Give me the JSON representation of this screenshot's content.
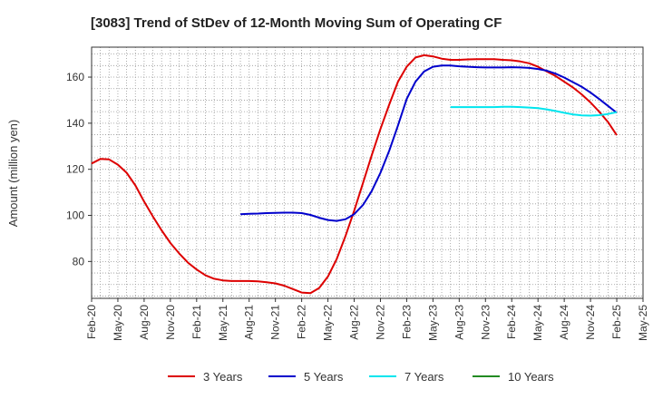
{
  "chart_data": {
    "type": "line",
    "title": "[3083]  Trend of StDev of 12-Month Moving Sum of Operating CF",
    "xlabel": "",
    "ylabel": "Amount (million yen)",
    "ylim": [
      64,
      173
    ],
    "yticks": [
      80,
      100,
      120,
      140,
      160
    ],
    "x_start": "2020-02",
    "x_end": "2025-05",
    "xtick_labels": [
      "Feb-20",
      "May-20",
      "Aug-20",
      "Nov-20",
      "Feb-21",
      "May-21",
      "Aug-21",
      "Nov-21",
      "Feb-22",
      "May-22",
      "Aug-22",
      "Nov-22",
      "Feb-23",
      "May-23",
      "Aug-23",
      "Nov-23",
      "Feb-24",
      "May-24",
      "Aug-24",
      "Nov-24",
      "Feb-25",
      "May-25"
    ],
    "grid": true,
    "legend_position": "bottom",
    "series": [
      {
        "name": "3 Years",
        "color": "#dd0000",
        "points": [
          [
            "2020-02",
            122.5
          ],
          [
            "2020-03",
            124.5
          ],
          [
            "2020-04",
            124.3
          ],
          [
            "2020-05",
            122.0
          ],
          [
            "2020-06",
            118.5
          ],
          [
            "2020-07",
            113.0
          ],
          [
            "2020-08",
            106.0
          ],
          [
            "2020-09",
            99.5
          ],
          [
            "2020-10",
            93.5
          ],
          [
            "2020-11",
            88.0
          ],
          [
            "2020-12",
            83.5
          ],
          [
            "2021-01",
            79.5
          ],
          [
            "2021-02",
            76.5
          ],
          [
            "2021-03",
            74.0
          ],
          [
            "2021-04",
            72.5
          ],
          [
            "2021-05",
            71.8
          ],
          [
            "2021-06",
            71.5
          ],
          [
            "2021-07",
            71.5
          ],
          [
            "2021-08",
            71.5
          ],
          [
            "2021-09",
            71.4
          ],
          [
            "2021-10",
            71.0
          ],
          [
            "2021-11",
            70.5
          ],
          [
            "2021-12",
            69.5
          ],
          [
            "2022-01",
            68.0
          ],
          [
            "2022-02",
            66.5
          ],
          [
            "2022-03",
            66.3
          ],
          [
            "2022-04",
            68.5
          ],
          [
            "2022-05",
            73.5
          ],
          [
            "2022-06",
            81.0
          ],
          [
            "2022-07",
            91.0
          ],
          [
            "2022-08",
            102.0
          ],
          [
            "2022-09",
            114.0
          ],
          [
            "2022-10",
            126.0
          ],
          [
            "2022-11",
            137.5
          ],
          [
            "2022-12",
            148.0
          ],
          [
            "2023-01",
            158.0
          ],
          [
            "2023-02",
            164.5
          ],
          [
            "2023-03",
            168.5
          ],
          [
            "2023-04",
            169.5
          ],
          [
            "2023-05",
            169.0
          ],
          [
            "2023-06",
            168.0
          ],
          [
            "2023-07",
            167.5
          ],
          [
            "2023-08",
            167.5
          ],
          [
            "2023-09",
            167.7
          ],
          [
            "2023-10",
            167.8
          ],
          [
            "2023-11",
            167.8
          ],
          [
            "2023-12",
            167.8
          ],
          [
            "2024-01",
            167.5
          ],
          [
            "2024-02",
            167.3
          ],
          [
            "2024-03",
            166.8
          ],
          [
            "2024-04",
            166.0
          ],
          [
            "2024-05",
            164.5
          ],
          [
            "2024-06",
            162.5
          ],
          [
            "2024-07",
            160.5
          ],
          [
            "2024-08",
            158.0
          ],
          [
            "2024-09",
            155.5
          ],
          [
            "2024-10",
            152.5
          ],
          [
            "2024-11",
            149.0
          ],
          [
            "2024-12",
            145.0
          ],
          [
            "2025-01",
            140.5
          ],
          [
            "2025-02",
            134.8
          ]
        ]
      },
      {
        "name": "5 Years",
        "color": "#0000cc",
        "points": [
          [
            "2021-07",
            100.5
          ],
          [
            "2021-08",
            100.7
          ],
          [
            "2021-09",
            100.8
          ],
          [
            "2021-10",
            101.0
          ],
          [
            "2021-11",
            101.1
          ],
          [
            "2021-12",
            101.2
          ],
          [
            "2022-01",
            101.2
          ],
          [
            "2022-02",
            101.0
          ],
          [
            "2022-03",
            100.2
          ],
          [
            "2022-04",
            99.0
          ],
          [
            "2022-05",
            98.0
          ],
          [
            "2022-06",
            97.6
          ],
          [
            "2022-07",
            98.3
          ],
          [
            "2022-08",
            100.5
          ],
          [
            "2022-09",
            104.5
          ],
          [
            "2022-10",
            110.5
          ],
          [
            "2022-11",
            118.5
          ],
          [
            "2022-12",
            128.0
          ],
          [
            "2023-01",
            139.0
          ],
          [
            "2023-02",
            150.5
          ],
          [
            "2023-03",
            158.0
          ],
          [
            "2023-04",
            162.5
          ],
          [
            "2023-05",
            164.5
          ],
          [
            "2023-06",
            165.0
          ],
          [
            "2023-07",
            165.0
          ],
          [
            "2023-08",
            164.7
          ],
          [
            "2023-09",
            164.5
          ],
          [
            "2023-10",
            164.3
          ],
          [
            "2023-11",
            164.2
          ],
          [
            "2023-12",
            164.2
          ],
          [
            "2024-01",
            164.2
          ],
          [
            "2024-02",
            164.3
          ],
          [
            "2024-03",
            164.2
          ],
          [
            "2024-04",
            164.0
          ],
          [
            "2024-05",
            163.5
          ],
          [
            "2024-06",
            162.8
          ],
          [
            "2024-07",
            161.5
          ],
          [
            "2024-08",
            159.8
          ],
          [
            "2024-09",
            157.8
          ],
          [
            "2024-10",
            155.8
          ],
          [
            "2024-11",
            153.3
          ],
          [
            "2024-12",
            150.5
          ],
          [
            "2025-01",
            147.5
          ],
          [
            "2025-02",
            144.5
          ]
        ]
      },
      {
        "name": "7 Years",
        "color": "#00e5ee",
        "points": [
          [
            "2023-07",
            147.0
          ],
          [
            "2023-08",
            147.0
          ],
          [
            "2023-09",
            147.0
          ],
          [
            "2023-10",
            147.0
          ],
          [
            "2023-11",
            147.0
          ],
          [
            "2023-12",
            147.0
          ],
          [
            "2024-01",
            147.1
          ],
          [
            "2024-02",
            147.1
          ],
          [
            "2024-03",
            147.0
          ],
          [
            "2024-04",
            146.8
          ],
          [
            "2024-05",
            146.5
          ],
          [
            "2024-06",
            146.0
          ],
          [
            "2024-07",
            145.3
          ],
          [
            "2024-08",
            144.5
          ],
          [
            "2024-09",
            143.8
          ],
          [
            "2024-10",
            143.4
          ],
          [
            "2024-11",
            143.3
          ],
          [
            "2024-12",
            143.5
          ],
          [
            "2025-01",
            144.0
          ],
          [
            "2025-02",
            144.8
          ]
        ]
      },
      {
        "name": "10 Years",
        "color": "#228b22",
        "points": []
      }
    ]
  }
}
